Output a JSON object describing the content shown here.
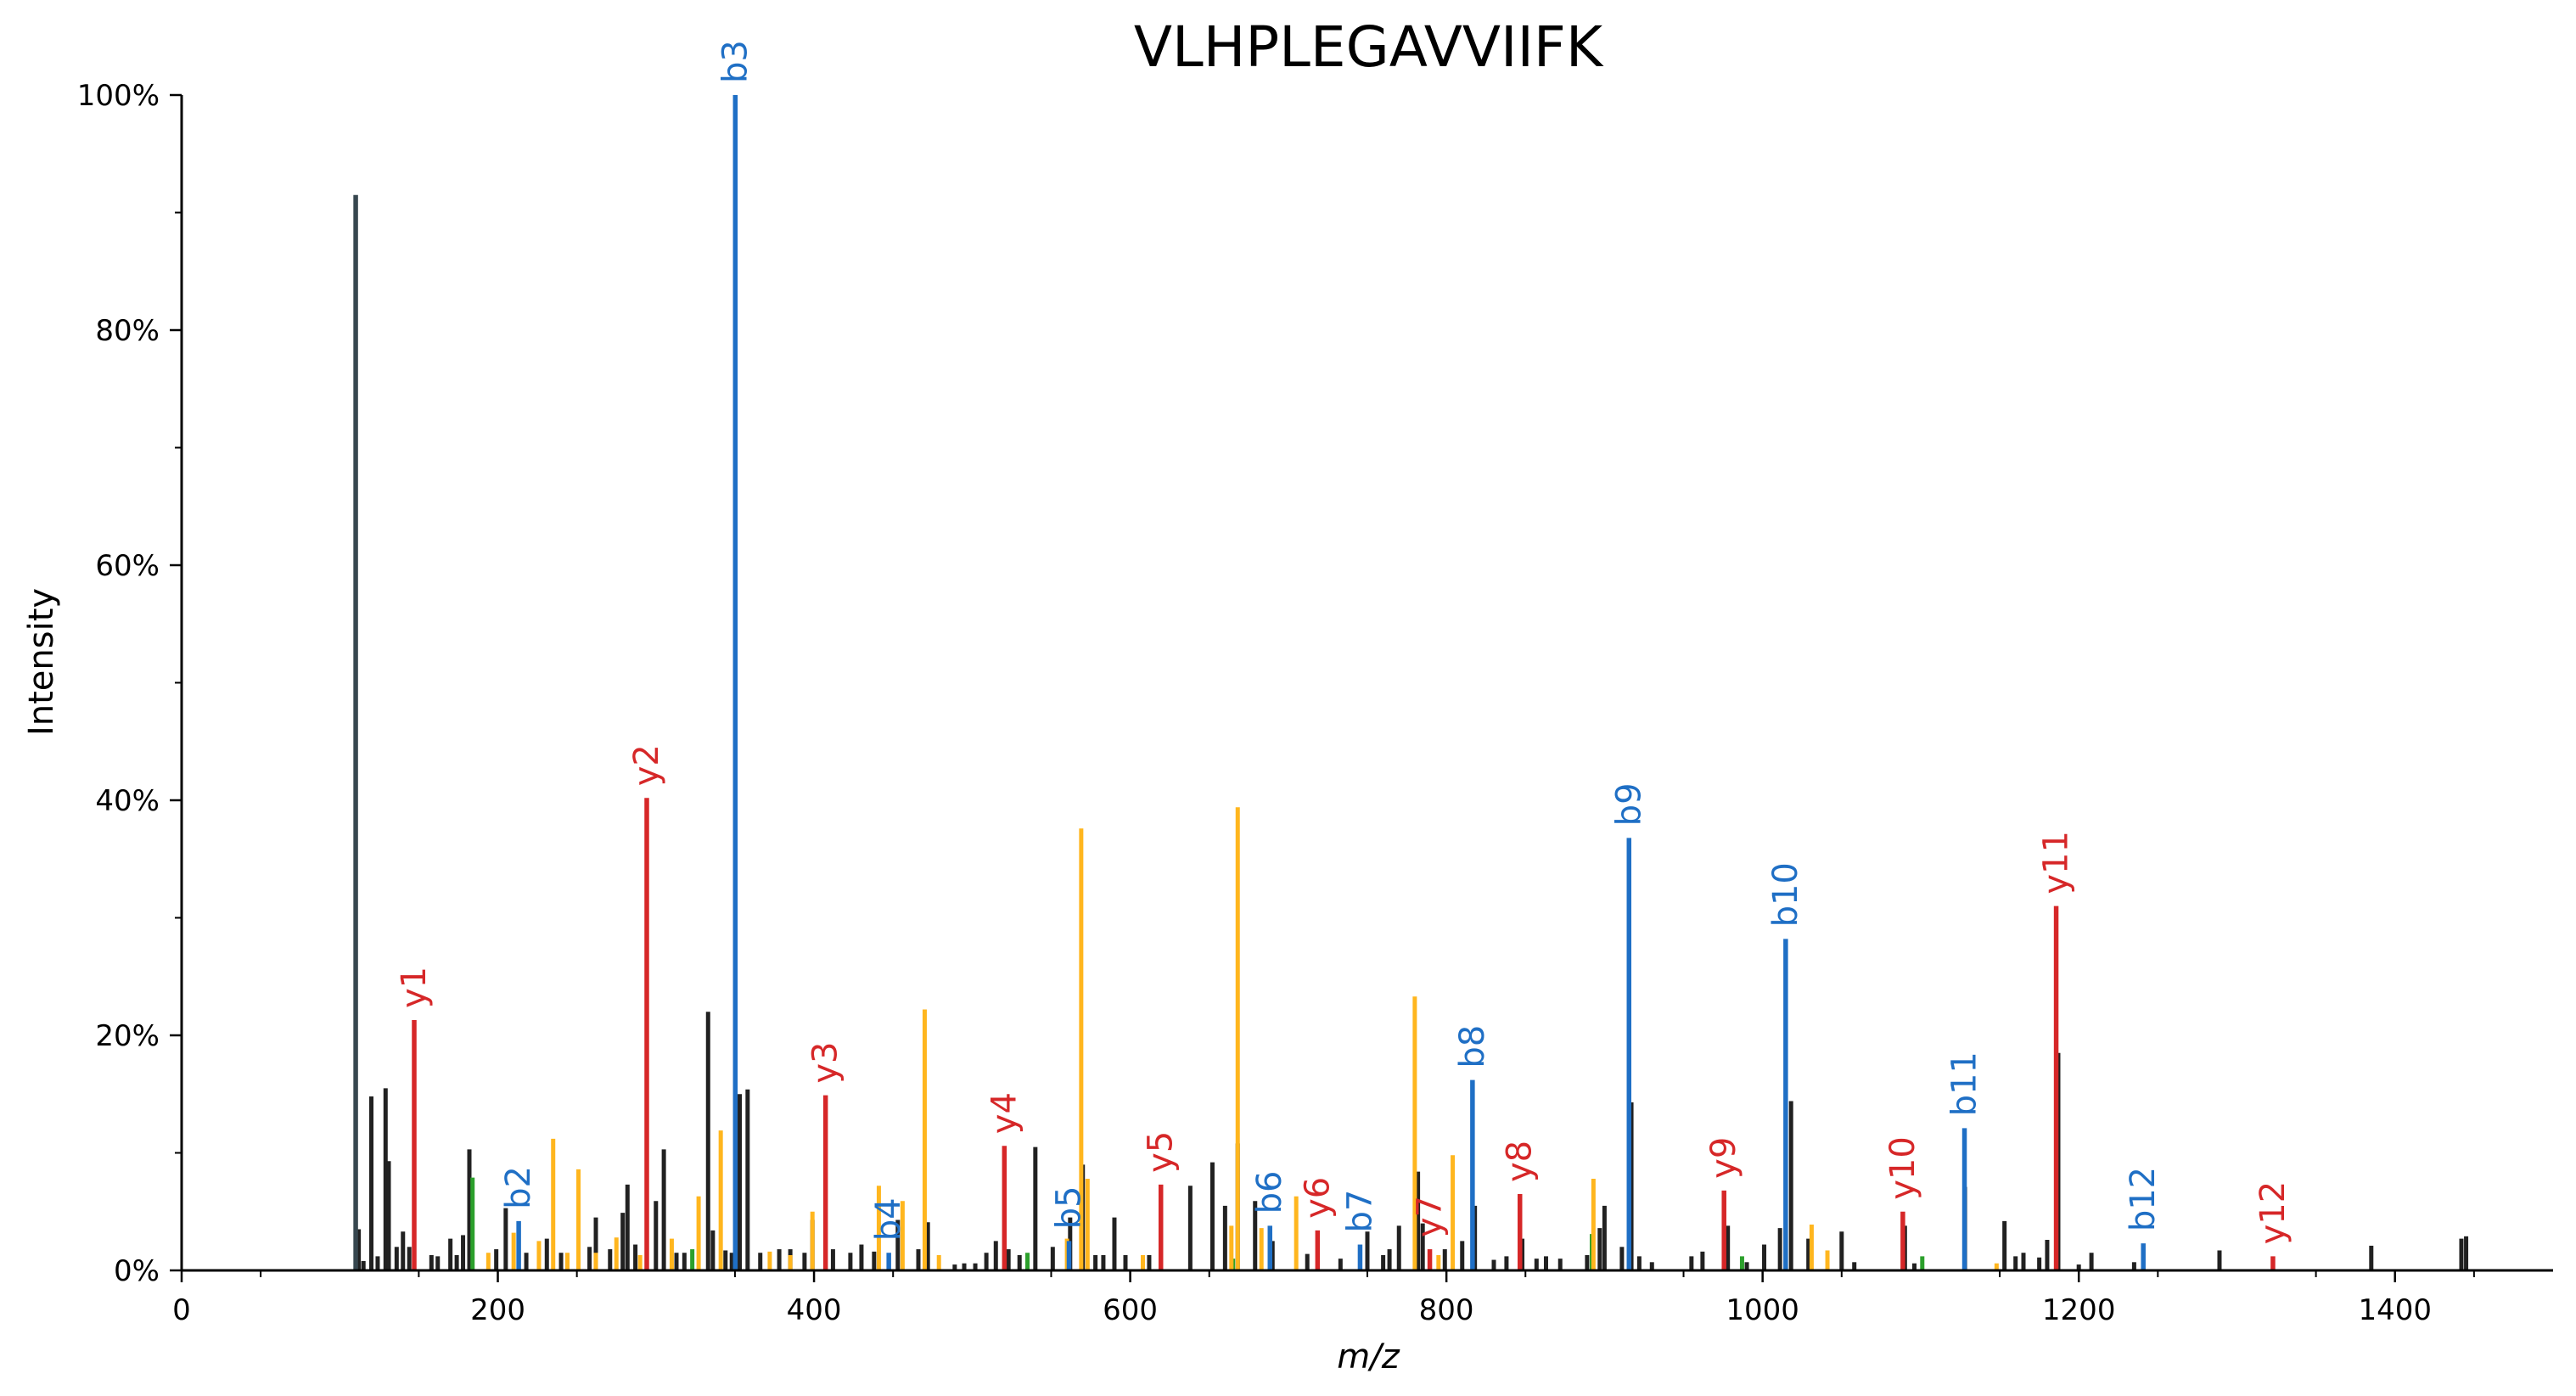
{
  "colors": {
    "b_ion": "#1f6fc5",
    "y_ion": "#d62728",
    "precursor": "#ffb61e",
    "neutral_loss": "#2ca02c",
    "unannotated": "#212121",
    "immonium": "#37474f"
  },
  "chart_data": {
    "type": "bar",
    "title": "VLHPLEGAVVIIFK",
    "xlabel": "m/z",
    "ylabel": "Intensity",
    "xlim": [
      0,
      1500
    ],
    "ylim": [
      0,
      100
    ],
    "x_ticks": [
      {
        "value": 0,
        "label": "0"
      },
      {
        "value": 200,
        "label": "200"
      },
      {
        "value": 400,
        "label": "400"
      },
      {
        "value": 600,
        "label": "600"
      },
      {
        "value": 800,
        "label": "800"
      },
      {
        "value": 1000,
        "label": "1000"
      },
      {
        "value": 1200,
        "label": "1200"
      },
      {
        "value": 1400,
        "label": "1400"
      }
    ],
    "y_ticks": [
      {
        "value": 0,
        "label": "0%"
      },
      {
        "value": 20,
        "label": "20%"
      },
      {
        "value": 40,
        "label": "40%"
      },
      {
        "value": 60,
        "label": "60%"
      },
      {
        "value": 80,
        "label": "80%"
      },
      {
        "value": 100,
        "label": "100%"
      }
    ],
    "series": [
      {
        "kind": "immonium",
        "peaks": [
          [
            110.1,
            91.5
          ]
        ]
      },
      {
        "kind": "b_ion",
        "peaks": [
          [
            213.2,
            4.2,
            "b2"
          ],
          [
            350.2,
            100,
            "b3"
          ],
          [
            447.3,
            1.5,
            "b4"
          ],
          [
            561.3,
            2.5,
            "b5"
          ],
          [
            688.4,
            3.8,
            "b6"
          ],
          [
            745.4,
            2.2,
            "b7"
          ],
          [
            816.5,
            16.2,
            "b8"
          ],
          [
            915.5,
            36.8,
            "b9"
          ],
          [
            1014.6,
            28.2,
            "b10"
          ],
          [
            1127.7,
            12.1,
            "b11"
          ],
          [
            1240.8,
            2.3,
            "b12"
          ]
        ]
      },
      {
        "kind": "y_ion",
        "peaks": [
          [
            147.1,
            21.3,
            "y1"
          ],
          [
            294.2,
            40.2,
            "y2"
          ],
          [
            407.3,
            14.9,
            "y3"
          ],
          [
            520.4,
            10.6,
            "y4"
          ],
          [
            619.4,
            7.3,
            "y5"
          ],
          [
            718.5,
            3.4,
            "y6"
          ],
          [
            789.5,
            1.8,
            "y7"
          ],
          [
            846.5,
            6.5,
            "y8"
          ],
          [
            975.6,
            6.8,
            "y9"
          ],
          [
            1088.7,
            5.0,
            "y10"
          ],
          [
            1185.7,
            31.0,
            "y11"
          ],
          [
            1322.8,
            1.2,
            "y12"
          ]
        ]
      },
      {
        "kind": "precursor",
        "peaks": [
          [
            194,
            1.5
          ],
          [
            210,
            3.2
          ],
          [
            226,
            2.5
          ],
          [
            235,
            11.2
          ],
          [
            244,
            1.5
          ],
          [
            251,
            8.6
          ],
          [
            262,
            1.5
          ],
          [
            275,
            2.8
          ],
          [
            290,
            1.3
          ],
          [
            310,
            2.7
          ],
          [
            327,
            6.3
          ],
          [
            341,
            11.9
          ],
          [
            372,
            1.6
          ],
          [
            385,
            1.3
          ],
          [
            399,
            5.0
          ],
          [
            441,
            7.2
          ],
          [
            456,
            5.9
          ],
          [
            470,
            22.2
          ],
          [
            479,
            1.3
          ],
          [
            560,
            2.7
          ],
          [
            569,
            37.6
          ],
          [
            573,
            7.8
          ],
          [
            608,
            1.3
          ],
          [
            664,
            3.8
          ],
          [
            668,
            39.4
          ],
          [
            683,
            3.6
          ],
          [
            705,
            6.3
          ],
          [
            780,
            23.3
          ],
          [
            795,
            1.3
          ],
          [
            804,
            9.8
          ],
          [
            893,
            7.8
          ],
          [
            1031,
            3.9
          ],
          [
            1041,
            1.7
          ],
          [
            1148,
            0.6
          ]
        ]
      },
      {
        "kind": "neutral_loss",
        "peaks": [
          [
            184,
            7.9
          ],
          [
            323,
            1.8
          ],
          [
            535,
            1.5
          ],
          [
            665,
            1.0
          ],
          [
            892,
            3.1
          ],
          [
            987,
            1.2
          ],
          [
            1101,
            1.2
          ]
        ]
      },
      {
        "kind": "unannotated",
        "peaks": [
          [
            112,
            3.5
          ],
          [
            115,
            0.8
          ],
          [
            120,
            14.8
          ],
          [
            124,
            1.2
          ],
          [
            129,
            15.5
          ],
          [
            131,
            9.3
          ],
          [
            136,
            2.0
          ],
          [
            140,
            3.3
          ],
          [
            144,
            2.0
          ],
          [
            158,
            1.3
          ],
          [
            162,
            1.2
          ],
          [
            170,
            2.7
          ],
          [
            174,
            1.3
          ],
          [
            178,
            3.0
          ],
          [
            182,
            10.3
          ],
          [
            199,
            1.8
          ],
          [
            205,
            5.3
          ],
          [
            218,
            1.5
          ],
          [
            231,
            2.7
          ],
          [
            240,
            1.5
          ],
          [
            258,
            2.0
          ],
          [
            262,
            4.5
          ],
          [
            271,
            1.8
          ],
          [
            279,
            4.9
          ],
          [
            282,
            7.3
          ],
          [
            287,
            2.2
          ],
          [
            300,
            5.9
          ],
          [
            305,
            10.3
          ],
          [
            313,
            1.5
          ],
          [
            318,
            1.5
          ],
          [
            333,
            22.0
          ],
          [
            336,
            3.4
          ],
          [
            344,
            1.7
          ],
          [
            348,
            1.5
          ],
          [
            353,
            15.0
          ],
          [
            358,
            15.4
          ],
          [
            366,
            1.5
          ],
          [
            378,
            1.8
          ],
          [
            385,
            1.8
          ],
          [
            394,
            1.5
          ],
          [
            399,
            4.3
          ],
          [
            412,
            1.8
          ],
          [
            423,
            1.5
          ],
          [
            430,
            2.2
          ],
          [
            438,
            1.6
          ],
          [
            453,
            4.3
          ],
          [
            466,
            1.8
          ],
          [
            472,
            4.1
          ],
          [
            489,
            0.5
          ],
          [
            495,
            0.6
          ],
          [
            502,
            0.6
          ],
          [
            509,
            1.5
          ],
          [
            515,
            2.5
          ],
          [
            523,
            1.8
          ],
          [
            530,
            1.3
          ],
          [
            540,
            10.5
          ],
          [
            551,
            2.0
          ],
          [
            562,
            4.5
          ],
          [
            570,
            9.0
          ],
          [
            578,
            1.3
          ],
          [
            583,
            1.3
          ],
          [
            590,
            4.5
          ],
          [
            597,
            1.3
          ],
          [
            612,
            1.3
          ],
          [
            638,
            7.2
          ],
          [
            652,
            9.2
          ],
          [
            660,
            5.5
          ],
          [
            668,
            10.8
          ],
          [
            679,
            5.9
          ],
          [
            690,
            2.5
          ],
          [
            712,
            1.4
          ],
          [
            733,
            1.0
          ],
          [
            750,
            3.3
          ],
          [
            760,
            1.3
          ],
          [
            764,
            1.8
          ],
          [
            770,
            3.8
          ],
          [
            782,
            8.4
          ],
          [
            785,
            4.0
          ],
          [
            799,
            1.8
          ],
          [
            810,
            2.5
          ],
          [
            818,
            5.5
          ],
          [
            830,
            0.9
          ],
          [
            838,
            1.2
          ],
          [
            848,
            2.7
          ],
          [
            857,
            1.0
          ],
          [
            863,
            1.2
          ],
          [
            872,
            1.0
          ],
          [
            889,
            1.3
          ],
          [
            897,
            3.6
          ],
          [
            900,
            5.5
          ],
          [
            911,
            2.0
          ],
          [
            917,
            14.3
          ],
          [
            922,
            1.2
          ],
          [
            930,
            0.7
          ],
          [
            955,
            1.2
          ],
          [
            962,
            1.6
          ],
          [
            978,
            3.8
          ],
          [
            990,
            0.7
          ],
          [
            1001,
            2.2
          ],
          [
            1011,
            3.6
          ],
          [
            1018,
            14.4
          ],
          [
            1029,
            2.7
          ],
          [
            1050,
            3.3
          ],
          [
            1058,
            0.7
          ],
          [
            1090,
            3.8
          ],
          [
            1096,
            0.6
          ],
          [
            1128,
            7.1
          ],
          [
            1153,
            4.2
          ],
          [
            1160,
            1.2
          ],
          [
            1165,
            1.5
          ],
          [
            1175,
            1.1
          ],
          [
            1180,
            2.6
          ],
          [
            1187,
            18.5
          ],
          [
            1200,
            0.5
          ],
          [
            1208,
            1.5
          ],
          [
            1235,
            0.7
          ],
          [
            1289,
            1.7
          ],
          [
            1385,
            2.1
          ],
          [
            1442,
            2.7
          ],
          [
            1445,
            2.9
          ]
        ]
      }
    ]
  }
}
